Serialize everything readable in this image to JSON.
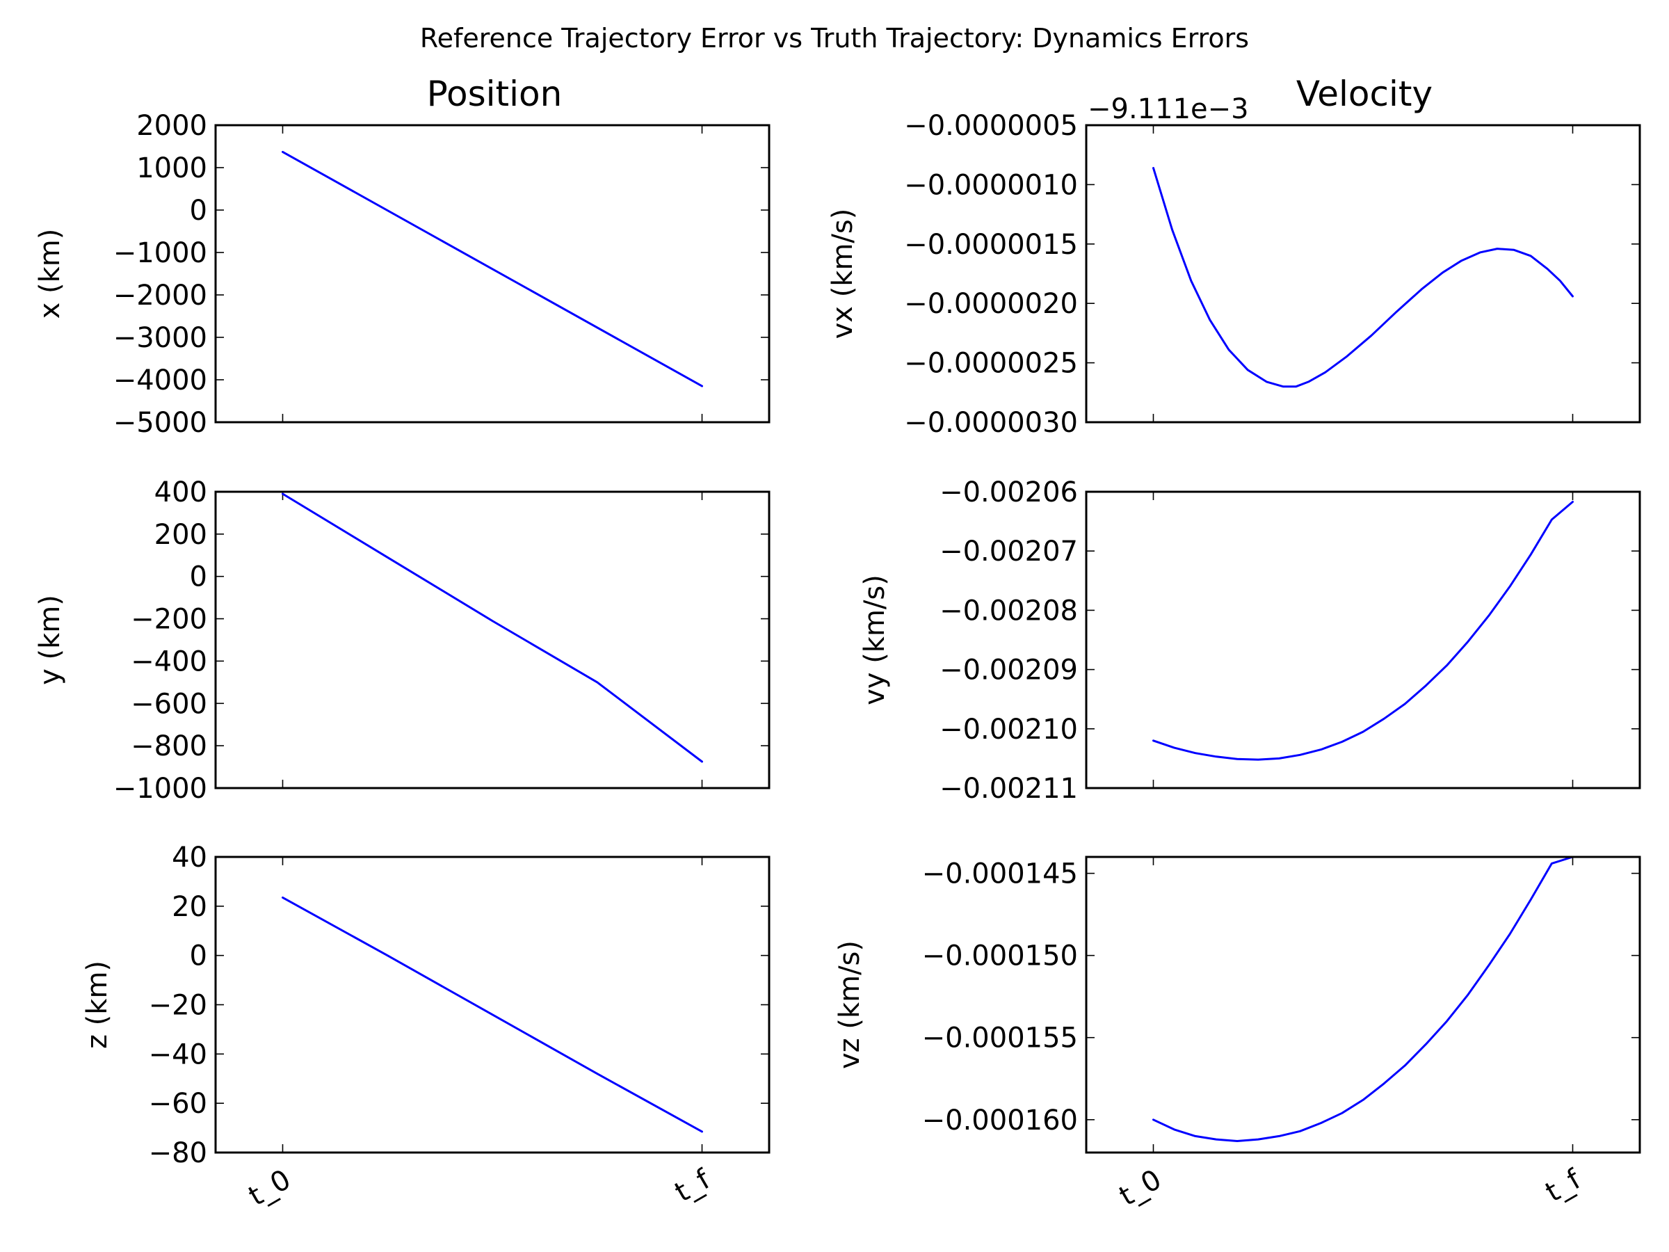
{
  "figure": {
    "suptitle": "Reference Trajectory Error vs Truth Trajectory: Dynamics Errors",
    "column_titles": [
      "Position",
      "Velocity"
    ]
  },
  "chart_data": [
    {
      "type": "line",
      "ylabel": "x (km)",
      "x": [
        0,
        1
      ],
      "xticklabels": [
        "t_0",
        "t_f"
      ],
      "xlim": [
        -0.16,
        1.16
      ],
      "ylim": [
        -5000,
        2000
      ],
      "yticks": [
        2000,
        1000,
        0,
        -1000,
        -2000,
        -3000,
        -4000,
        -5000
      ],
      "yticklabels": [
        "2000",
        "1000",
        "0",
        "−1000",
        "−2000",
        "−3000",
        "−4000",
        "−5000"
      ],
      "series": [
        {
          "x": [
            0,
            1
          ],
          "values": [
            1370,
            -4150
          ]
        }
      ]
    },
    {
      "type": "line",
      "ylabel": "vx (km/s)",
      "offset_text": "−9.111e−3",
      "xticklabels": [
        "t_0",
        "t_f"
      ],
      "xlim": [
        -0.16,
        1.16
      ],
      "ylim": [
        -3e-06,
        -5e-07
      ],
      "yticks": [
        -5e-07,
        -1e-06,
        -1.5e-06,
        -2e-06,
        -2.5e-06,
        -3e-06
      ],
      "yticklabels": [
        "−0.0000005",
        "−0.0000010",
        "−0.0000015",
        "−0.0000020",
        "−0.0000025",
        "−0.0000030"
      ],
      "series": [
        {
          "x": [
            0,
            0.045,
            0.09,
            0.135,
            0.18,
            0.225,
            0.27,
            0.31,
            0.34,
            0.37,
            0.41,
            0.46,
            0.52,
            0.58,
            0.64,
            0.69,
            0.735,
            0.78,
            0.82,
            0.86,
            0.9,
            0.94,
            0.97,
            1.0
          ],
          "values": [
            -8.6e-07,
            -1.38e-06,
            -1.81e-06,
            -2.14e-06,
            -2.39e-06,
            -2.56e-06,
            -2.66e-06,
            -2.7e-06,
            -2.7e-06,
            -2.66e-06,
            -2.58e-06,
            -2.45e-06,
            -2.27e-06,
            -2.07e-06,
            -1.88e-06,
            -1.74e-06,
            -1.64e-06,
            -1.57e-06,
            -1.54e-06,
            -1.55e-06,
            -1.6e-06,
            -1.71e-06,
            -1.81e-06,
            -1.94e-06
          ]
        }
      ]
    },
    {
      "type": "line",
      "ylabel": "y (km)",
      "xticklabels": [
        "t_0",
        "t_f"
      ],
      "xlim": [
        -0.16,
        1.16
      ],
      "ylim": [
        -1000,
        400
      ],
      "yticks": [
        400,
        200,
        0,
        -200,
        -400,
        -600,
        -800,
        -1000
      ],
      "yticklabels": [
        "400",
        "200",
        "0",
        "−200",
        "−400",
        "−600",
        "−800",
        "−1000"
      ],
      "series": [
        {
          "x": [
            0,
            0.25,
            0.5,
            0.75,
            1
          ],
          "values": [
            390,
            90,
            -210,
            -500,
            -875
          ]
        }
      ]
    },
    {
      "type": "line",
      "ylabel": "vy (km/s)",
      "xticklabels": [
        "t_0",
        "t_f"
      ],
      "xlim": [
        -0.16,
        1.16
      ],
      "ylim": [
        -0.00211,
        -0.00206
      ],
      "yticks": [
        -0.00206,
        -0.00207,
        -0.00208,
        -0.00209,
        -0.0021,
        -0.00211
      ],
      "yticklabels": [
        "−0.00206",
        "−0.00207",
        "−0.00208",
        "−0.00209",
        "−0.00210",
        "−0.00211"
      ],
      "series": [
        {
          "x": [
            0,
            0.05,
            0.1,
            0.15,
            0.2,
            0.25,
            0.3,
            0.35,
            0.4,
            0.45,
            0.5,
            0.55,
            0.6,
            0.65,
            0.7,
            0.75,
            0.8,
            0.85,
            0.9,
            0.95,
            1.0
          ],
          "values": [
            -0.002102,
            -0.0021032,
            -0.0021041,
            -0.0021047,
            -0.0021051,
            -0.0021052,
            -0.002105,
            -0.0021044,
            -0.0021035,
            -0.0021022,
            -0.0021005,
            -0.0020983,
            -0.0020958,
            -0.0020927,
            -0.0020893,
            -0.0020853,
            -0.0020809,
            -0.002076,
            -0.0020706,
            -0.0020647,
            -0.0020617
          ]
        }
      ]
    },
    {
      "type": "line",
      "ylabel": "z (km)",
      "xticklabels": [
        "t_0",
        "t_f"
      ],
      "xlim": [
        -0.16,
        1.16
      ],
      "ylim": [
        -80,
        40
      ],
      "yticks": [
        40,
        20,
        0,
        -20,
        -40,
        -60,
        -80
      ],
      "yticklabels": [
        "40",
        "20",
        "0",
        "−20",
        "−40",
        "−60",
        "−80"
      ],
      "series": [
        {
          "x": [
            0,
            0.25,
            0.5,
            0.75,
            1
          ],
          "values": [
            23.5,
            0,
            -24,
            -48,
            -71.5
          ]
        }
      ]
    },
    {
      "type": "line",
      "ylabel": "vz (km/s)",
      "xticklabels": [
        "t_0",
        "t_f"
      ],
      "xlim": [
        -0.16,
        1.16
      ],
      "ylim": [
        -0.000162,
        -0.000144
      ],
      "yticks": [
        -0.000145,
        -0.00015,
        -0.000155,
        -0.00016
      ],
      "yticklabels": [
        "−0.000145",
        "−0.000150",
        "−0.000155",
        "−0.000160"
      ],
      "series": [
        {
          "x": [
            0,
            0.05,
            0.1,
            0.15,
            0.2,
            0.25,
            0.3,
            0.35,
            0.4,
            0.45,
            0.5,
            0.55,
            0.6,
            0.65,
            0.7,
            0.75,
            0.8,
            0.85,
            0.9,
            0.95,
            1.0
          ],
          "values": [
            -0.00016,
            -0.0001606,
            -0.000161,
            -0.0001612,
            -0.0001613,
            -0.0001612,
            -0.000161,
            -0.0001607,
            -0.0001602,
            -0.0001596,
            -0.0001588,
            -0.0001578,
            -0.0001567,
            -0.0001554,
            -0.000154,
            -0.0001524,
            -0.0001506,
            -0.0001487,
            -0.0001466,
            -0.0001444,
            -0.000144
          ]
        }
      ]
    }
  ]
}
